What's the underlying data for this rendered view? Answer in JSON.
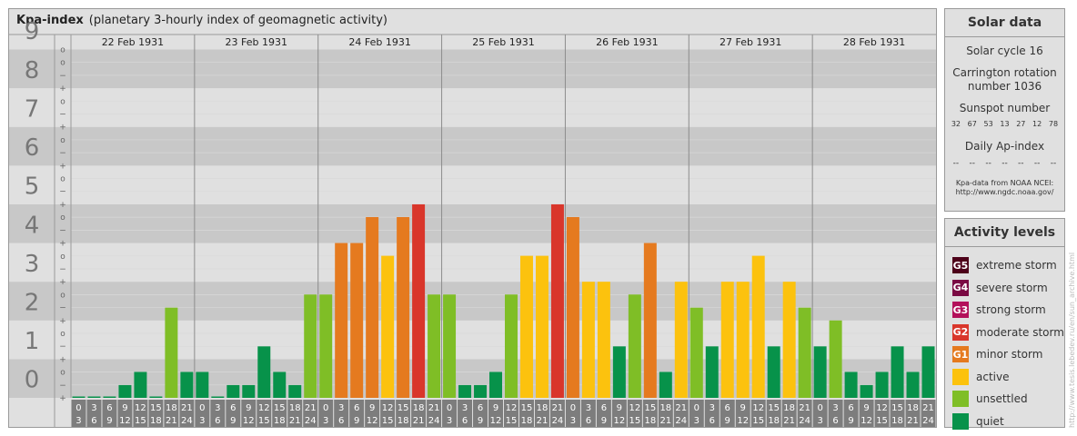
{
  "header": {
    "title": "Kpa-index",
    "subtitle": "(planetary 3-hourly index of geomagnetic activity)"
  },
  "chart_data": {
    "type": "bar",
    "title": "Kpa-index",
    "subtitle": "(planetary 3-hourly index of geomagnetic activity)",
    "ylim": [
      0,
      9
    ],
    "y_major_ticks": [
      "0",
      "1",
      "2",
      "3",
      "4",
      "5",
      "6",
      "7",
      "8",
      "9"
    ],
    "y_minor_marks": [
      "+",
      "−",
      "o",
      "+",
      "−",
      "o",
      "+",
      "−",
      "o",
      "+",
      "−",
      "o",
      "+",
      "−",
      "o",
      "+",
      "−",
      "o",
      "+",
      "−",
      "o",
      "+",
      "−",
      "o",
      "+",
      "−",
      "o",
      "o"
    ],
    "grid": true,
    "days": [
      "22 Feb 1931",
      "23 Feb 1931",
      "24 Feb 1931",
      "25 Feb 1931",
      "26 Feb 1931",
      "27 Feb 1931",
      "28 Feb 1931"
    ],
    "interval_start_labels": [
      "0",
      "3",
      "6",
      "9",
      "12",
      "15",
      "18",
      "21"
    ],
    "interval_end_labels": [
      "3",
      "6",
      "9",
      "12",
      "15",
      "18",
      "21",
      "24"
    ],
    "values": [
      [
        0,
        0,
        0,
        0.33,
        0.67,
        0,
        2.33,
        0.67
      ],
      [
        0.67,
        0,
        0.33,
        0.33,
        1.33,
        0.67,
        0.33,
        2.67
      ],
      [
        2.67,
        4,
        4,
        4.67,
        3.67,
        4.67,
        5,
        2.67
      ],
      [
        2.67,
        0.33,
        0.33,
        0.67,
        2.67,
        3.67,
        3.67,
        5
      ],
      [
        4.67,
        3,
        3,
        1.33,
        2.67,
        4,
        0.67,
        3
      ],
      [
        2.33,
        1.33,
        3,
        3,
        3.67,
        1.33,
        3,
        2.33
      ],
      [
        1.33,
        2,
        0.67,
        0.33,
        0.67,
        1.33,
        0.67,
        1.33
      ]
    ],
    "color_thresholds": {
      "quiet": 2,
      "unsettled": 3,
      "active": 4,
      "minor_storm": 5,
      "moderate_storm": 6,
      "strong_storm": 7,
      "severe_storm": 8,
      "extreme_storm": 9
    }
  },
  "solar": {
    "header": "Solar data",
    "cycle": "Solar cycle 16",
    "carrington_line1": "Carrington rotation",
    "carrington_line2": "number 1036",
    "sunspot_label": "Sunspot number",
    "sunspots": [
      "32",
      "67",
      "53",
      "13",
      "27",
      "12",
      "78"
    ],
    "ap_label": "Daily Ap-index",
    "ap_values": [
      "--",
      "--",
      "--",
      "--",
      "--",
      "--",
      "--"
    ],
    "source_line1": "Kpa-data from NOAA NCEI:",
    "source_line2": "http://www.ngdc.noaa.gov/"
  },
  "activity": {
    "header": "Activity levels",
    "levels": [
      {
        "badge": "G5",
        "label": "extreme storm",
        "color": "#4d0019"
      },
      {
        "badge": "G4",
        "label": "severe storm",
        "color": "#7a0a43"
      },
      {
        "badge": "G3",
        "label": "strong storm",
        "color": "#b3105a"
      },
      {
        "badge": "G2",
        "label": "moderate storm",
        "color": "#d9362b"
      },
      {
        "badge": "G1",
        "label": "minor storm",
        "color": "#e57a1f"
      },
      {
        "badge": "",
        "label": "active",
        "color": "#fcc20e"
      },
      {
        "badge": "",
        "label": "unsettled",
        "color": "#7fbe26"
      },
      {
        "badge": "",
        "label": "quiet",
        "color": "#07924a"
      }
    ]
  },
  "credit": "http://www.tesis.lebedev.ru/en/sun_archive.html"
}
